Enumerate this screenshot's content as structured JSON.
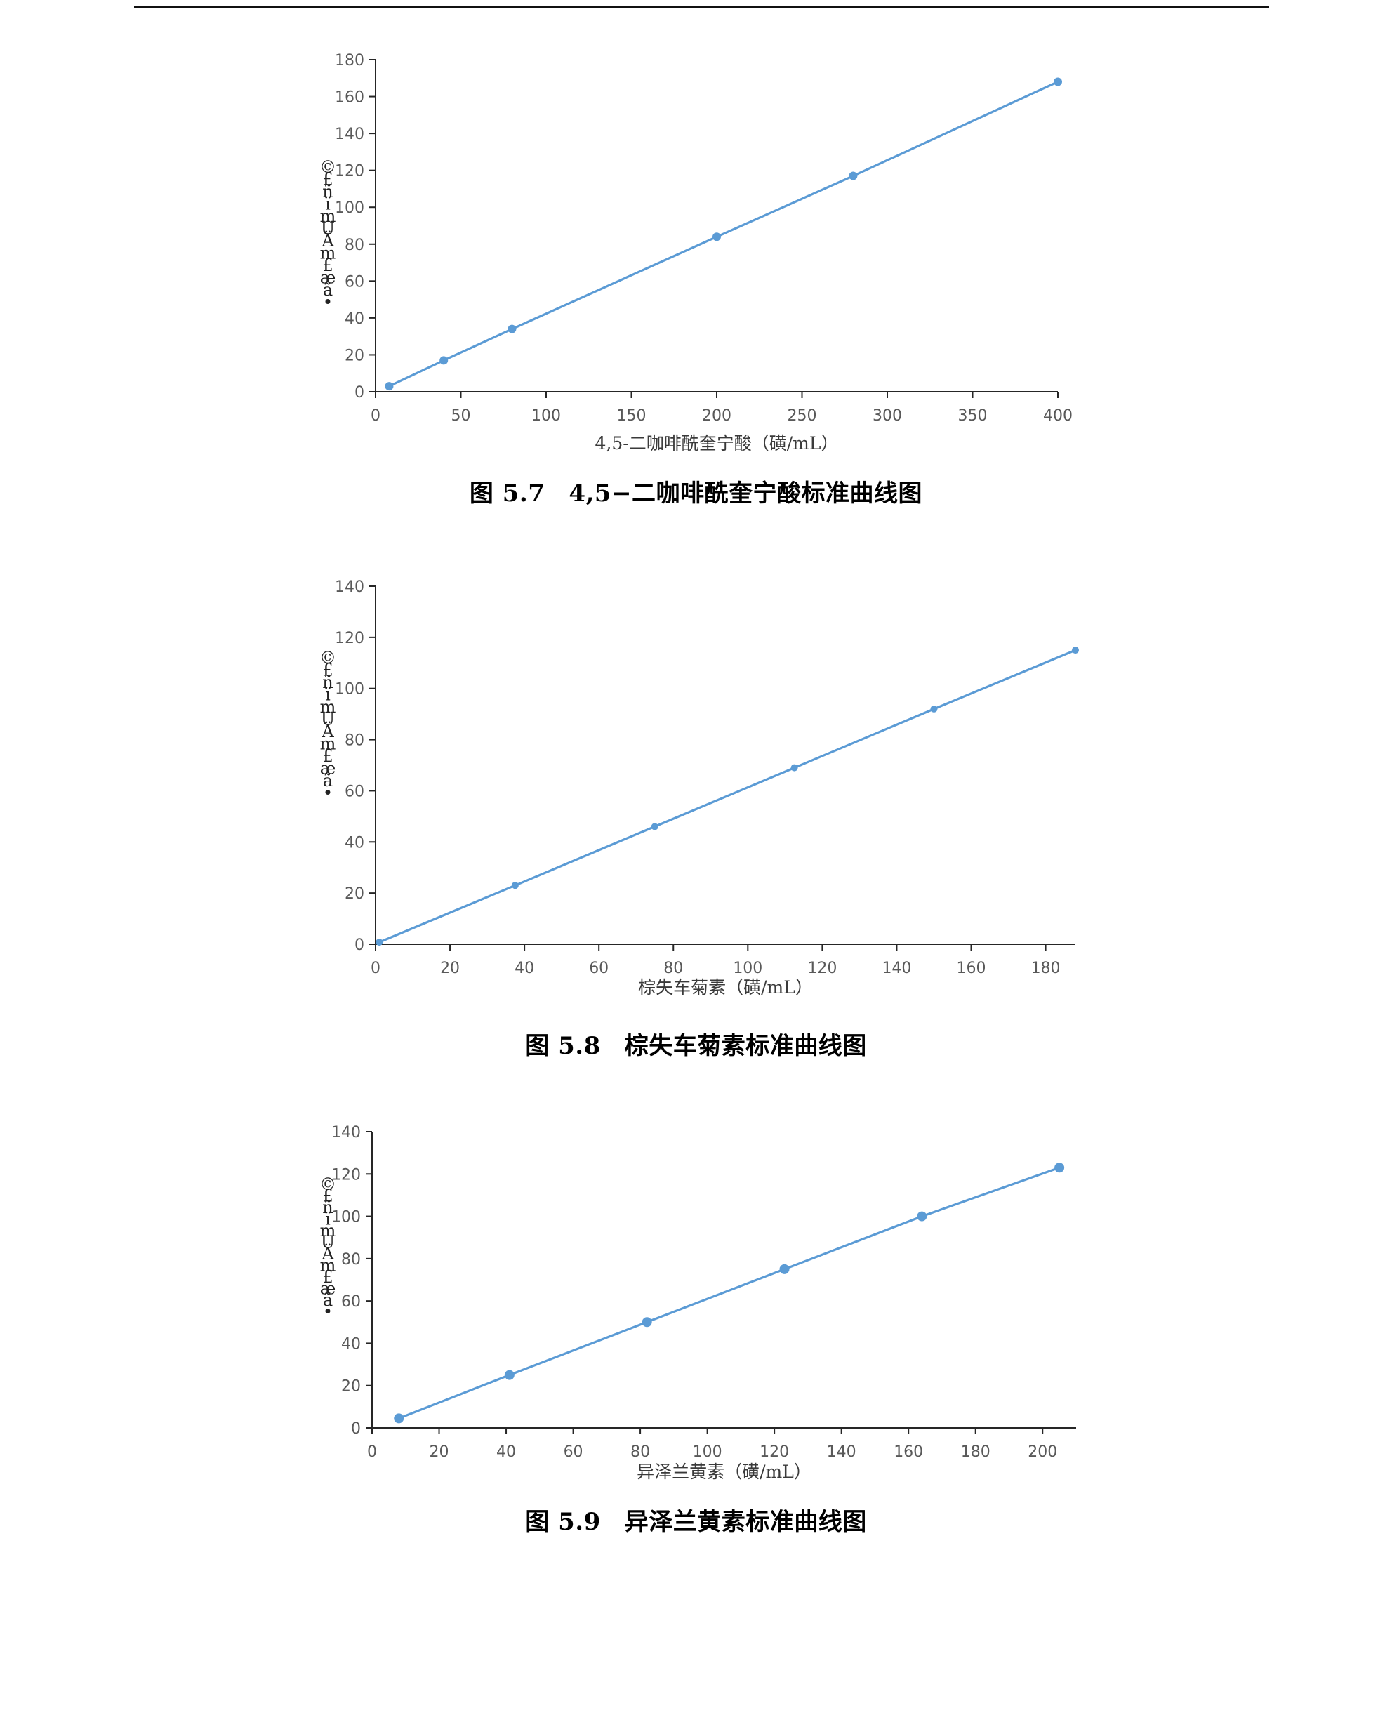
{
  "chart_data": [
    {
      "type": "line",
      "caption": {
        "number": "图 5.7",
        "title": "4,5−二咖啡酰奎宁酸标准曲线图"
      },
      "xlabel": "4,5-二咖啡酰奎宁酸（磺/mL）",
      "ylabel_glyphs": [
        "©",
        "£",
        "ñ",
        "ï",
        "m",
        "U",
        "Ä",
        "m",
        "£",
        "æ",
        "ã",
        "•"
      ],
      "xlim": [
        0,
        400
      ],
      "ylim": [
        0,
        180
      ],
      "xticks": [
        0,
        50,
        100,
        150,
        200,
        250,
        300,
        350,
        400
      ],
      "yticks": [
        0,
        20,
        40,
        60,
        80,
        100,
        120,
        140,
        160,
        180
      ],
      "series": [
        {
          "x": [
            8,
            40,
            80,
            200,
            280,
            400
          ],
          "y": [
            3,
            17,
            34,
            84,
            117,
            168
          ]
        }
      ],
      "color": "#5B9BD5",
      "grid": false
    },
    {
      "type": "line",
      "caption": {
        "number": "图 5.8",
        "title": "棕失车菊素标准曲线图"
      },
      "xlabel": "棕失车菊素（磺/mL）",
      "ylabel_glyphs": [
        "©",
        "£",
        "ñ",
        "ï",
        "m",
        "U",
        "Ä",
        "m",
        "£",
        "æ",
        "ã",
        "•"
      ],
      "xlim": [
        0,
        188
      ],
      "ylim": [
        0,
        140
      ],
      "xticks": [
        0,
        20,
        40,
        60,
        80,
        100,
        120,
        140,
        160,
        180
      ],
      "yticks": [
        0,
        20,
        40,
        60,
        80,
        100,
        120,
        140
      ],
      "series": [
        {
          "x": [
            1,
            37.5,
            75,
            112.5,
            150,
            188
          ],
          "y": [
            0.8,
            23,
            46,
            69,
            92,
            115
          ]
        }
      ],
      "color": "#5B9BD5",
      "grid": false
    },
    {
      "type": "line",
      "caption": {
        "number": "图 5.9",
        "title": "异泽兰黄素标准曲线图"
      },
      "xlabel": "异泽兰黄素（磺/mL）",
      "ylabel_glyphs": [
        "©",
        "£",
        "ñ",
        "ï",
        "m",
        "U",
        "Ä",
        "m",
        "£",
        "æ",
        "ã",
        "•"
      ],
      "xlim": [
        0,
        210
      ],
      "ylim": [
        0,
        140
      ],
      "xticks": [
        0,
        20,
        40,
        60,
        80,
        100,
        120,
        140,
        160,
        180,
        200
      ],
      "yticks": [
        0,
        20,
        40,
        60,
        80,
        100,
        120,
        140
      ],
      "series": [
        {
          "x": [
            8,
            41,
            82,
            123,
            164,
            205
          ],
          "y": [
            4.5,
            25,
            50,
            75,
            100,
            123
          ]
        }
      ],
      "color": "#5B9BD5",
      "grid": false
    }
  ]
}
